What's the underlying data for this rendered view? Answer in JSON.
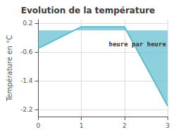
{
  "chart_data": {
    "type": "area",
    "title": "Evolution de la température",
    "ylabel": "Température en °C",
    "x": [
      0,
      1,
      2,
      3
    ],
    "values": [
      -0.5,
      0.1,
      0.1,
      -2.1
    ],
    "color": "#5bbece",
    "xlim": [
      0,
      3
    ],
    "xticks": [
      0,
      1,
      2,
      3
    ],
    "ylim": [
      -2.4,
      0.3
    ],
    "yticks": [
      0.2,
      -0.6,
      -1.4,
      -2.2
    ],
    "grid": true,
    "annotations": [
      {
        "text": "heure par heure",
        "x": 2.3,
        "y": -0.38
      }
    ]
  }
}
